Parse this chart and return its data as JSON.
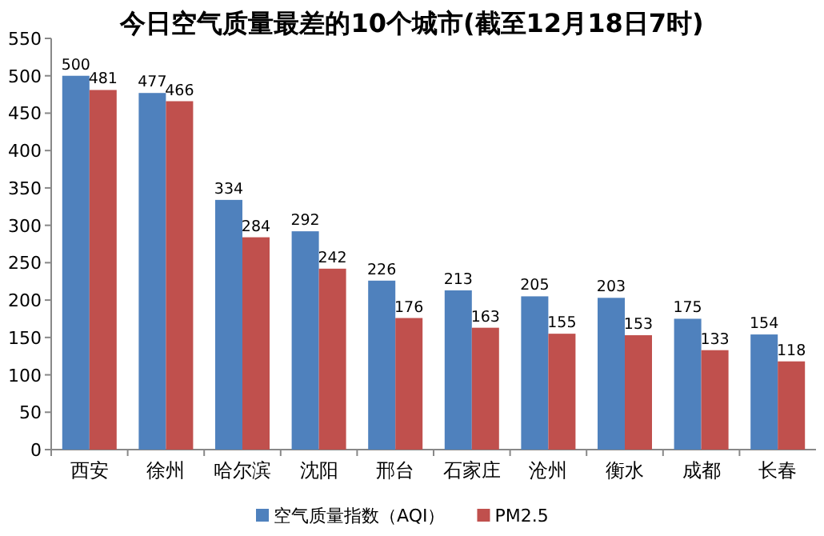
{
  "chart_data": {
    "type": "bar",
    "title": "今日空气质量最差的10个城市(截至12月18日7时)",
    "categories": [
      "西安",
      "徐州",
      "哈尔滨",
      "沈阳",
      "邢台",
      "石家庄",
      "沧州",
      "衡水",
      "成都",
      "长春"
    ],
    "series": [
      {
        "name": "空气质量指数（AQI）",
        "color": "#4f81bd",
        "values": [
          500,
          477,
          334,
          292,
          226,
          213,
          205,
          203,
          175,
          154
        ]
      },
      {
        "name": "PM2.5",
        "color": "#c0504d",
        "values": [
          481,
          466,
          284,
          242,
          176,
          163,
          155,
          153,
          133,
          118
        ]
      }
    ],
    "ylim": [
      0,
      550
    ],
    "yticks": [
      0,
      50,
      100,
      150,
      200,
      250,
      300,
      350,
      400,
      450,
      500,
      550
    ],
    "data_labels": true,
    "legend": "bottom",
    "grid": false
  }
}
